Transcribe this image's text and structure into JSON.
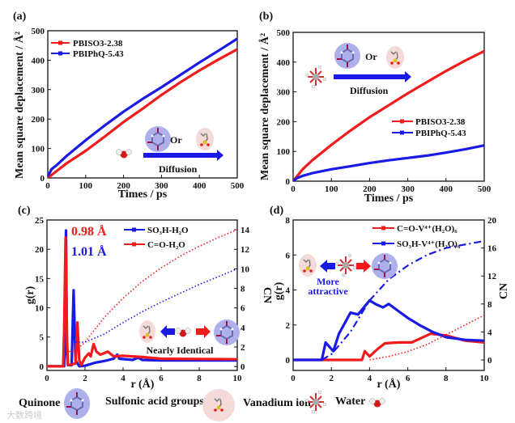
{
  "colors": {
    "red": "#f21b1b",
    "blue": "#1a1ae6",
    "quinone_fill": "#aeb0ec",
    "sulfonic_fill": "#f6d9d9"
  },
  "chart_data": [
    {
      "panel": "(a)",
      "type": "line",
      "xlabel": "Times / ps",
      "ylabel": "Mean square deplacement / Å²",
      "xlim": [
        0,
        500
      ],
      "ylim": [
        0,
        500
      ],
      "xticks": [
        "0",
        "100",
        "200",
        "300",
        "400",
        "500"
      ],
      "yticks": [
        "0",
        "100",
        "200",
        "300",
        "400",
        "500"
      ],
      "legend_position": "top-left",
      "series": [
        {
          "name": "PBISO3-2.38",
          "color": "red",
          "axis": "left",
          "style": "markers",
          "x": [
            0,
            25,
            50,
            100,
            150,
            200,
            250,
            300,
            350,
            400,
            450,
            500
          ],
          "y": [
            0,
            25,
            50,
            92,
            140,
            190,
            235,
            282,
            325,
            365,
            402,
            437
          ]
        },
        {
          "name": "PBIPhQ-5.43",
          "color": "blue",
          "axis": "left",
          "style": "markers",
          "x": [
            0,
            10,
            25,
            50,
            100,
            150,
            200,
            250,
            300,
            350,
            400,
            450,
            500
          ],
          "y": [
            5,
            30,
            45,
            75,
            128,
            178,
            225,
            268,
            308,
            350,
            392,
            432,
            473
          ]
        }
      ],
      "annotations": {
        "or": "Or",
        "diffusion": "Diffusion"
      }
    },
    {
      "panel": "(b)",
      "type": "line",
      "xlabel": "Times / ps",
      "ylabel": "Mean square deplacement / Å²",
      "xlim": [
        0,
        500
      ],
      "ylim": [
        0,
        500
      ],
      "xticks": [
        "0",
        "100",
        "200",
        "300",
        "400",
        "500"
      ],
      "yticks": [
        "0",
        "100",
        "200",
        "300",
        "400",
        "500"
      ],
      "legend_position": "center-right",
      "series": [
        {
          "name": "PBISO3-2.38",
          "color": "red",
          "axis": "left",
          "style": "markers",
          "x": [
            0,
            25,
            50,
            100,
            150,
            200,
            250,
            300,
            350,
            400,
            450,
            500
          ],
          "y": [
            0,
            40,
            70,
            122,
            170,
            215,
            255,
            295,
            333,
            370,
            405,
            437
          ]
        },
        {
          "name": "PBIPhQ-5.43",
          "color": "blue",
          "axis": "left",
          "style": "markers",
          "x": [
            0,
            10,
            25,
            50,
            100,
            150,
            200,
            250,
            300,
            350,
            400,
            450,
            500
          ],
          "y": [
            0,
            10,
            18,
            27,
            40,
            50,
            61,
            70,
            78,
            86,
            96,
            107,
            120
          ]
        }
      ],
      "annotations": {
        "or": "Or",
        "diffusion": "Diffusion"
      }
    },
    {
      "panel": "(c)",
      "type": "line",
      "xlabel": "r (Å)",
      "ylabel": "g(r)",
      "y2label": "CN",
      "xlim": [
        0,
        10
      ],
      "ylim": [
        -0.7,
        25
      ],
      "y2lim": [
        -0.4,
        15
      ],
      "xticks": [
        "0",
        "2",
        "4",
        "6",
        "8",
        "10"
      ],
      "yticks": [
        "0",
        "5",
        "10",
        "15",
        "20",
        "25"
      ],
      "y2ticks": [
        "0",
        "2",
        "4",
        "6",
        "8",
        "10",
        "12",
        "14"
      ],
      "legend_position": "top-center",
      "series": [
        {
          "name": "SO₃H-H₂O",
          "color": "blue",
          "axis": "left",
          "style": "markers",
          "x": [
            0,
            0.9,
            0.95,
            1.0,
            1.05,
            1.1,
            1.3,
            1.4,
            1.5,
            1.7,
            2.0,
            2.5,
            3.0,
            3.5,
            3.7,
            3.8,
            4.5,
            4.8,
            5.0,
            6.0,
            10
          ],
          "y": [
            0,
            0,
            3,
            23.2,
            3,
            0.2,
            0.2,
            13,
            1,
            0,
            0.1,
            0.6,
            0.9,
            1.3,
            2.0,
            1.3,
            1.1,
            1.5,
            1.1,
            1.0,
            1.0
          ]
        },
        {
          "name": "C=O-H₂O",
          "color": "red",
          "axis": "left",
          "style": "markers",
          "x": [
            0,
            0.85,
            0.9,
            0.98,
            1.05,
            1.1,
            1.5,
            1.6,
            1.7,
            1.8,
            2.0,
            2.2,
            2.3,
            2.45,
            2.6,
            2.8,
            3.2,
            3.5,
            4,
            5,
            6,
            10
          ],
          "y": [
            0,
            0,
            6,
            22,
            5,
            0.2,
            0.5,
            7.5,
            1,
            0.2,
            1.5,
            2.2,
            1.7,
            3.8,
            2.5,
            2.0,
            2.5,
            1.7,
            1.8,
            1.6,
            1.3,
            1.2
          ]
        },
        {
          "name": "CN C=O-H₂O",
          "color": "red",
          "axis": "right",
          "style": "dotted",
          "x": [
            1.0,
            1.5,
            2,
            3,
            4,
            5,
            6,
            7,
            8,
            9,
            10
          ],
          "y": [
            1.5,
            1.6,
            2.5,
            5,
            7,
            8.7,
            10.1,
            11.3,
            12.3,
            13.2,
            14
          ]
        },
        {
          "name": "CN SO₃H-H₂O",
          "color": "blue",
          "axis": "right",
          "style": "dotted",
          "x": [
            1.5,
            2,
            3,
            4,
            5,
            6,
            7,
            8,
            9,
            10
          ],
          "y": [
            2.5,
            2.5,
            3.3,
            4.5,
            5.6,
            6.6,
            7.5,
            8.4,
            9.2,
            10
          ]
        }
      ],
      "annotations": {
        "peak_red": "0.98 Å",
        "peak_blue": "1.01 Å",
        "note": "Nearly Identical"
      }
    },
    {
      "panel": "(d)",
      "type": "line",
      "xlabel": "r (Å)",
      "ylabel": "g(r)",
      "y2label": "CN",
      "xlim": [
        0,
        10
      ],
      "ylim": [
        -0.6,
        8
      ],
      "y2lim": [
        -1.5,
        20
      ],
      "xticks": [
        "0",
        "2",
        "4",
        "6",
        "8",
        "10"
      ],
      "yticks": [
        "0",
        "2",
        "4",
        "6",
        "8"
      ],
      "y2ticks": [
        "0",
        "4",
        "8",
        "12",
        "16",
        "20"
      ],
      "legend_position": "top-right",
      "series": [
        {
          "name": "C=O-V⁴⁺(H₂O)₆",
          "color": "red",
          "axis": "left",
          "style": "markers",
          "x": [
            0,
            3.6,
            3.75,
            4.0,
            4.4,
            4.8,
            5.5,
            6.2,
            6.8,
            7.2,
            8,
            9,
            10
          ],
          "y": [
            0,
            0,
            0.5,
            0.2,
            0.6,
            0.95,
            1.0,
            1.0,
            1.3,
            1.5,
            1.4,
            1.1,
            1.0
          ]
        },
        {
          "name": "SO₃H-V⁴⁺(H₂O)₆",
          "color": "blue",
          "axis": "left",
          "style": "markers",
          "x": [
            0,
            1.5,
            1.7,
            2.1,
            2.4,
            3.0,
            3.4,
            4.0,
            4.3,
            4.7,
            5.0,
            5.5,
            6.0,
            6.6,
            7.3,
            8,
            9,
            10
          ],
          "y": [
            0,
            0,
            1.0,
            0.5,
            1.5,
            2.7,
            2.6,
            3.4,
            3.2,
            3.0,
            3.2,
            2.8,
            2.4,
            2.0,
            1.6,
            1.3,
            1.15,
            1.1
          ]
        },
        {
          "name": "CN SO₃H-V⁴⁺(H₂O)₆",
          "color": "blue",
          "axis": "right",
          "style": "dashdot",
          "x": [
            1.5,
            2,
            3,
            4,
            5,
            6,
            7,
            8,
            9,
            10
          ],
          "y": [
            0,
            0.8,
            4,
            8.5,
            11.5,
            13.5,
            15,
            16,
            16.5,
            17
          ]
        },
        {
          "name": "CN C=O-V⁴⁺(H₂O)₆",
          "color": "red",
          "axis": "right",
          "style": "dotted",
          "x": [
            4,
            5,
            6,
            7,
            8,
            9,
            10
          ],
          "y": [
            0,
            0.5,
            1.2,
            2.2,
            3.6,
            5,
            6.4
          ]
        }
      ],
      "annotations": {
        "note_line1": "More",
        "note_line2": "attractive"
      }
    }
  ],
  "key": {
    "quinone": "Quinone",
    "sulfonic": "Sulfonic acid groups",
    "vanadium": "Vanadium ion",
    "water": "Water"
  },
  "watermark": "大数跨境"
}
